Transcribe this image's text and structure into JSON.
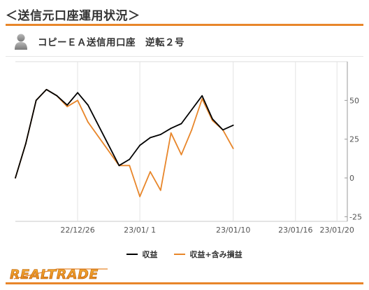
{
  "page": {
    "title": "＜送信元口座運用状況＞"
  },
  "account": {
    "avatar_icon": "person-silhouette-icon",
    "name": "コピーＥＡ送信用口座　逆転２号"
  },
  "colors": {
    "accent": "#e8862a",
    "series_profit": "#000000",
    "series_total": "#e8862a"
  },
  "chart_data": {
    "type": "line",
    "x": [
      "12/20",
      "12/21",
      "12/22",
      "12/23",
      "12/24",
      "12/25",
      "12/26",
      "12/27",
      "12/28",
      "12/29",
      "12/30",
      "12/31",
      "01/01",
      "01/02",
      "01/03",
      "01/04",
      "01/05",
      "01/06",
      "01/07",
      "01/08",
      "01/09",
      "01/10",
      "01/11",
      "01/12",
      "01/13",
      "01/14",
      "01/15",
      "01/16",
      "01/17",
      "01/18",
      "01/19",
      "01/20",
      "01/21"
    ],
    "x_tick_labels": [
      {
        "at": "12/26",
        "label": "22/12/26"
      },
      {
        "at": "01/01",
        "label": "23/01/ 1"
      },
      {
        "at": "01/10",
        "label": "23/01/10"
      },
      {
        "at": "01/16",
        "label": "23/01/16"
      },
      {
        "at": "01/20",
        "label": "23/01/20"
      }
    ],
    "y_ticks": [
      -25,
      0,
      25,
      50
    ],
    "y_tick_labels": [
      "-25",
      "0",
      "25",
      "50"
    ],
    "ylim": [
      -28,
      75
    ],
    "xlim": [
      "12/20",
      "01/21"
    ],
    "grid": "vertical",
    "legend_position": "bottom-center",
    "series": [
      {
        "name": "収益",
        "color": "#000000",
        "points": [
          [
            "12/20",
            0
          ],
          [
            "12/21",
            22
          ],
          [
            "12/22",
            50
          ],
          [
            "12/23",
            57
          ],
          [
            "12/24",
            53
          ],
          [
            "12/25",
            47
          ],
          [
            "12/26",
            55
          ],
          [
            "12/27",
            47
          ],
          [
            "12/30",
            8
          ],
          [
            "12/31",
            12
          ],
          [
            "01/01",
            21
          ],
          [
            "01/02",
            26
          ],
          [
            "01/03",
            28
          ],
          [
            "01/04",
            32
          ],
          [
            "01/05",
            35
          ],
          [
            "01/06",
            44
          ],
          [
            "01/07",
            53
          ],
          [
            "01/08",
            38
          ],
          [
            "01/09",
            31
          ],
          [
            "01/10",
            34
          ]
        ]
      },
      {
        "name": "収益+含み損益",
        "color": "#e8862a",
        "points": [
          [
            "12/20",
            0
          ],
          [
            "12/21",
            22
          ],
          [
            "12/22",
            50
          ],
          [
            "12/23",
            57
          ],
          [
            "12/24",
            53
          ],
          [
            "12/25",
            46
          ],
          [
            "12/26",
            50
          ],
          [
            "12/27",
            36
          ],
          [
            "12/30",
            8
          ],
          [
            "12/31",
            8
          ],
          [
            "01/01",
            -12
          ],
          [
            "01/02",
            4
          ],
          [
            "01/03",
            -8
          ],
          [
            "01/04",
            29
          ],
          [
            "01/05",
            15
          ],
          [
            "01/06",
            31
          ],
          [
            "01/07",
            51
          ],
          [
            "01/08",
            37
          ],
          [
            "01/09",
            31
          ],
          [
            "01/10",
            19
          ]
        ]
      }
    ]
  },
  "legend": {
    "item1": "収益",
    "item2": "収益+含み損益"
  },
  "logo": {
    "text": "REALTRADE"
  }
}
